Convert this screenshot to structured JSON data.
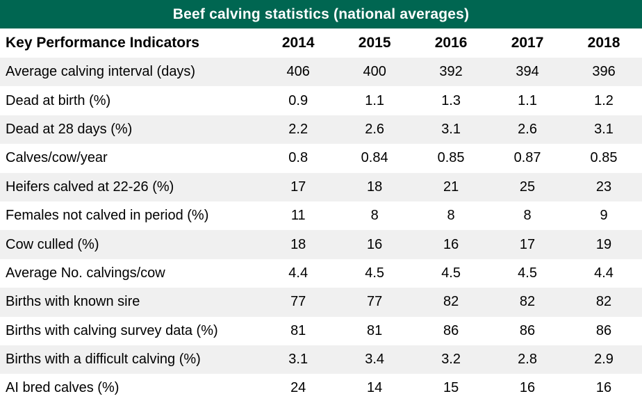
{
  "colors": {
    "title_bg": "#006651",
    "title_text": "#ffffff",
    "stripe_bg": "#f0f0f0",
    "body_text": "#000000"
  },
  "chart_data": {
    "type": "table",
    "title": "Beef calving statistics (national averages)",
    "columns": [
      "Key Performance Indicators",
      "2014",
      "2015",
      "2016",
      "2017",
      "2018"
    ],
    "rows": [
      {
        "label": "Average calving interval (days)",
        "values": [
          "406",
          "400",
          "392",
          "394",
          "396"
        ]
      },
      {
        "label": "Dead at birth (%)",
        "values": [
          "0.9",
          "1.1",
          "1.3",
          "1.1",
          "1.2"
        ]
      },
      {
        "label": "Dead at 28 days (%)",
        "values": [
          "2.2",
          "2.6",
          "3.1",
          "2.6",
          "3.1"
        ]
      },
      {
        "label": "Calves/cow/year",
        "values": [
          "0.8",
          "0.84",
          "0.85",
          "0.87",
          "0.85"
        ]
      },
      {
        "label": "Heifers calved at 22-26 (%)",
        "values": [
          "17",
          "18",
          "21",
          "25",
          "23"
        ]
      },
      {
        "label": "Females not calved in period (%)",
        "values": [
          "11",
          "8",
          "8",
          "8",
          "9"
        ]
      },
      {
        "label": "Cow culled (%)",
        "values": [
          "18",
          "16",
          "16",
          "17",
          "19"
        ]
      },
      {
        "label": "Average No. calvings/cow",
        "values": [
          "4.4",
          "4.5",
          "4.5",
          "4.5",
          "4.4"
        ]
      },
      {
        "label": "Births with known sire",
        "values": [
          "77",
          "77",
          "82",
          "82",
          "82"
        ]
      },
      {
        "label": "Births with calving survey data (%)",
        "values": [
          "81",
          "81",
          "86",
          "86",
          "86"
        ]
      },
      {
        "label": "Births with a difficult calving (%)",
        "values": [
          "3.1",
          "3.4",
          "3.2",
          "2.8",
          "2.9"
        ]
      },
      {
        "label": "AI bred calves (%)",
        "values": [
          "24",
          "14",
          "15",
          "16",
          "16"
        ]
      }
    ]
  }
}
